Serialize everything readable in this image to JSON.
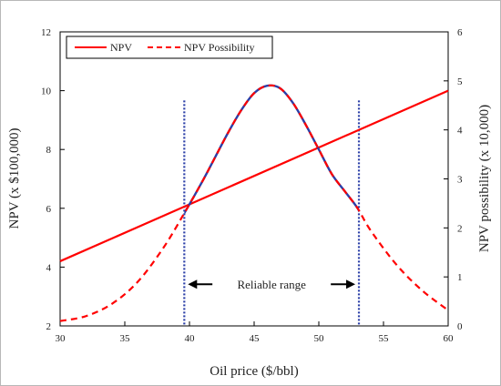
{
  "chart_data": {
    "type": "line",
    "xlabel": "Oil price ($/bbl)",
    "ylabel_left": "NPV (x $100,000)",
    "ylabel_right": "NPV possibility (x 10,000)",
    "xlim": [
      30,
      60
    ],
    "ylim_left": [
      2,
      12
    ],
    "ylim_right": [
      0,
      6
    ],
    "x_ticks": [
      "30",
      "35",
      "40",
      "45",
      "50",
      "55",
      "60"
    ],
    "y_left_ticks": [
      "2",
      "4",
      "6",
      "8",
      "10",
      "12"
    ],
    "y_right_ticks": [
      "0",
      "1",
      "2",
      "3",
      "4",
      "5",
      "6"
    ],
    "legend_position": "top-left",
    "series": [
      {
        "name": "NPV",
        "axis": "left",
        "style": "solid",
        "color": "#ff0000",
        "x": [
          30,
          60
        ],
        "y": [
          4.2,
          10.0
        ]
      },
      {
        "name": "NPV Possibility",
        "axis": "right",
        "style": "dashed",
        "color": "#ff0000",
        "accent_color": "#2b3fa8",
        "x": [
          30,
          32,
          34,
          36,
          38,
          39.6,
          41,
          42,
          43,
          44,
          45,
          46,
          47,
          48,
          49,
          50,
          51,
          52,
          53,
          54,
          56,
          58,
          60
        ],
        "y": [
          0.1,
          0.2,
          0.45,
          0.9,
          1.6,
          2.3,
          2.95,
          3.45,
          3.95,
          4.4,
          4.75,
          4.9,
          4.85,
          4.55,
          4.1,
          3.6,
          3.1,
          2.75,
          2.4,
          1.95,
          1.25,
          0.72,
          0.32
        ]
      }
    ],
    "reference_lines": [
      {
        "x": 39.6,
        "color": "#2b3fa8",
        "style": "dotted"
      },
      {
        "x": 53.1,
        "color": "#2b3fa8",
        "style": "dotted"
      }
    ],
    "annotations": [
      {
        "text": "Reliable range",
        "x_from": 39.6,
        "x_to": 53.1,
        "y_right": 0.85
      }
    ]
  }
}
